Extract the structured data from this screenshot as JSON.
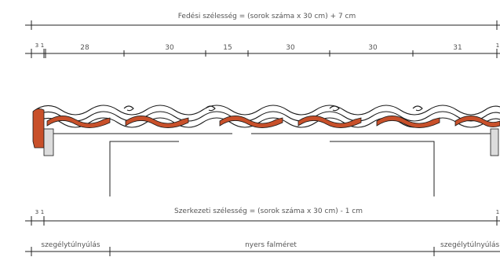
{
  "top_label": "Fedési szélesség = (sorok száma x 30 cm) + 7 cm",
  "top_dimensions": [
    "3",
    "1",
    "28",
    "30",
    "15",
    "30",
    "30",
    "31",
    "1"
  ],
  "bottom_label": "Szerkezeti szélesség = (sorok száma x 30 cm) - 1 cm",
  "bottom_dimensions": [
    "3",
    "1",
    "1"
  ],
  "footer_labels": {
    "left": "szegélytúlnyúlás",
    "middle": "nyers falméret",
    "right": "szegélytúlnyúlás"
  },
  "colors": {
    "tile_red": "#c8502a",
    "line": "#222222",
    "text": "#555555"
  }
}
